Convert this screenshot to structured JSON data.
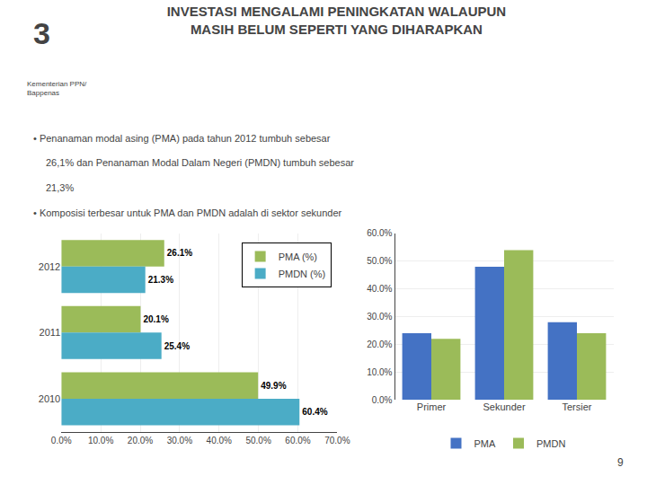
{
  "title": "INVESTASI MENGALAMI PENINGKATAN WALAUPUN\nMASIH BELUM SEPERTI YANG DIHARAPKAN",
  "annotations": [
    "3",
    "Kementerian PPN/\nBappenas",
    "• Penanaman modal asing (PMA) pada tahun 2012 tumbuh sebesar",
    "26,1% dan Penanaman Modal Dalam Negeri (PMDN) tumbuh sebesar",
    "21,3%",
    "• Komposisi terbesar untuk PMA dan PMDN adalah di sektor sekunder",
    "9"
  ],
  "chart_data": [
    {
      "type": "bar",
      "orientation": "horizontal",
      "categories": [
        "2012",
        "2011",
        "2010"
      ],
      "series": [
        {
          "name": "PMA (%)",
          "color": "#9BBB59",
          "values": [
            26.1,
            20.1,
            49.9
          ],
          "value_labels": [
            "26.1%",
            "20.1%",
            "49.9%"
          ]
        },
        {
          "name": "PMDN (%)",
          "color": "#4BACC6",
          "values": [
            21.3,
            25.4,
            60.4
          ],
          "value_labels": [
            "21.3%",
            "25.4%",
            "60.4%"
          ]
        }
      ],
      "xlim": [
        0,
        70
      ],
      "xticks": [
        {
          "value": 0,
          "label": "0.0%"
        },
        {
          "value": 10,
          "label": "10.0%"
        },
        {
          "value": 20,
          "label": "20.0%"
        },
        {
          "value": 30,
          "label": "30.0%"
        },
        {
          "value": 40,
          "label": "40.0%"
        },
        {
          "value": 50,
          "label": "50.0%"
        },
        {
          "value": 60,
          "label": "60.0%"
        },
        {
          "value": 70,
          "label": "70.0%"
        }
      ],
      "grid": true,
      "legend": "upper right",
      "data_labels": true
    },
    {
      "type": "bar",
      "categories": [
        "Primer",
        "Sekunder",
        "Tersier"
      ],
      "series": [
        {
          "name": "PMA",
          "color": "#4472C4",
          "values": [
            24.0,
            48.0,
            28.0
          ]
        },
        {
          "name": "PMDN",
          "color": "#9BBB59",
          "values": [
            22.0,
            54.0,
            24.0
          ]
        }
      ],
      "ylim": [
        0,
        60
      ],
      "yticks": [
        {
          "value": 0,
          "label": "0.0%"
        },
        {
          "value": 10,
          "label": "10.0%"
        },
        {
          "value": 20,
          "label": "20.0%"
        },
        {
          "value": 30,
          "label": "30.0%"
        },
        {
          "value": 40,
          "label": "40.0%"
        },
        {
          "value": 50,
          "label": "50.0%"
        },
        {
          "value": 60,
          "label": "60.0%"
        }
      ],
      "grid": true,
      "legend": "bottom"
    }
  ]
}
